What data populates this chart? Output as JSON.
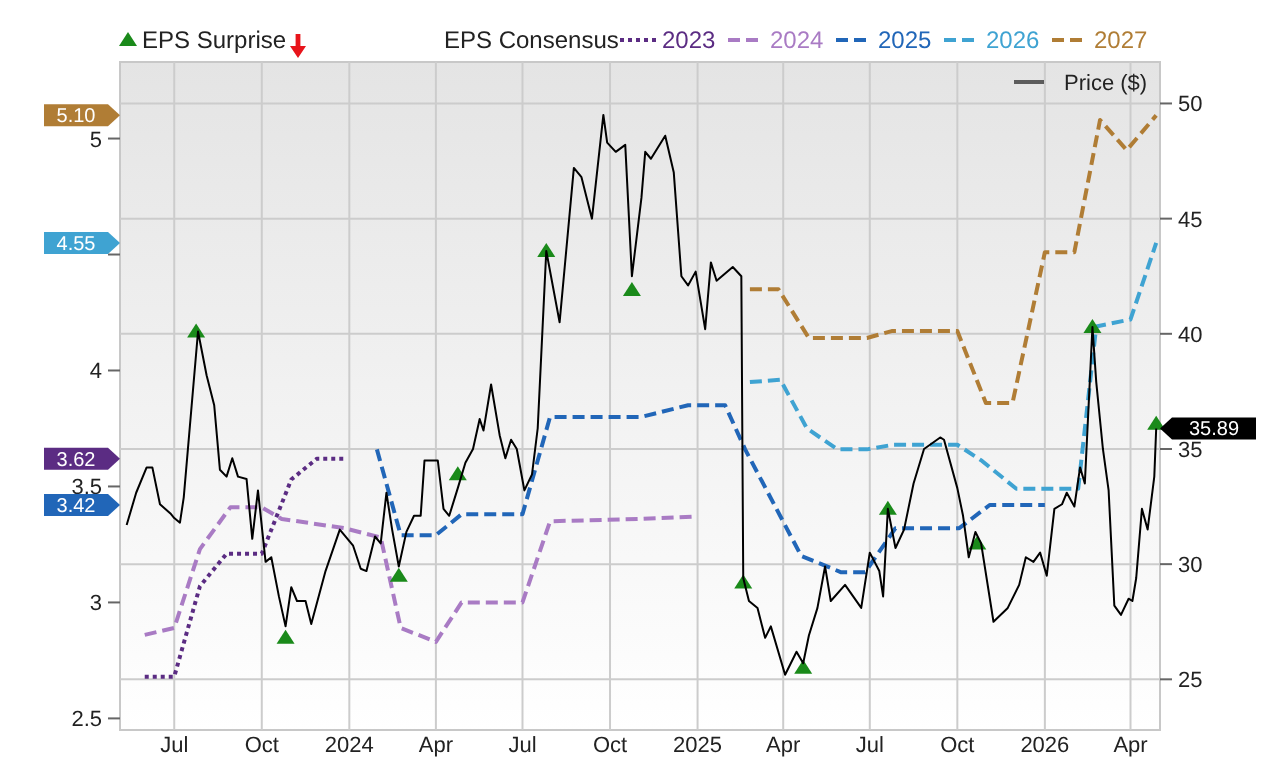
{
  "chart_data": {
    "type": "line",
    "legend_title": "EPS Consensus",
    "xlim": [
      "2023-05-05",
      "2026-05-02"
    ],
    "xticks": [
      {
        "value": "2023-07-01",
        "label": "Jul"
      },
      {
        "value": "2023-10-01",
        "label": "Oct"
      },
      {
        "value": "2024-01-01",
        "label": "2024"
      },
      {
        "value": "2024-04-01",
        "label": "Apr"
      },
      {
        "value": "2024-07-01",
        "label": "Jul"
      },
      {
        "value": "2024-10-01",
        "label": "Oct"
      },
      {
        "value": "2025-01-01",
        "label": "2025"
      },
      {
        "value": "2025-04-01",
        "label": "Apr"
      },
      {
        "value": "2025-07-01",
        "label": "Jul"
      },
      {
        "value": "2025-10-01",
        "label": "Oct"
      },
      {
        "value": "2026-01-01",
        "label": "2026"
      },
      {
        "value": "2026-04-01",
        "label": "Apr"
      }
    ],
    "ylim": [
      2.45,
      5.33
    ],
    "yticks": [
      2.5,
      3,
      {
        "value": 3.42,
        "label": "3.42"
      },
      3.5,
      {
        "value": 3.62,
        "label": "3.62"
      },
      4,
      {
        "value": 4.5,
        "label": null
      },
      {
        "value": 4.55,
        "label": "4.55"
      },
      5,
      {
        "value": 5.1,
        "label": "5.10"
      }
    ],
    "y2lim": [
      22.8,
      51.8
    ],
    "y2ticks": [
      25,
      30,
      35,
      40,
      45,
      50
    ],
    "grid": true,
    "legend": "top",
    "series": [
      {
        "name": "2023",
        "color": "#5b2c83",
        "line_style": "dotted",
        "x": [
          "2023-05-31",
          "2023-07-01",
          "2023-07-28",
          "2023-08-25",
          "2023-10-01",
          "2023-11-01",
          "2023-11-28",
          "2023-12-27"
        ],
        "values": [
          2.68,
          2.68,
          3.07,
          3.21,
          3.21,
          3.53,
          3.62,
          3.62
        ]
      },
      {
        "name": "2024",
        "color": "#a97bc4",
        "line_style": "dashed",
        "x": [
          "2023-05-31",
          "2023-07-01",
          "2023-07-28",
          "2023-08-29",
          "2023-10-01",
          "2023-10-22",
          "2023-12-27",
          "2024-02-03",
          "2024-02-24",
          "2024-04-01",
          "2024-04-28",
          "2024-07-01",
          "2024-07-30",
          "2024-11-03",
          "2024-12-30"
        ],
        "values": [
          2.86,
          2.89,
          3.23,
          3.41,
          3.41,
          3.36,
          3.32,
          3.28,
          2.89,
          2.83,
          3.0,
          3.0,
          3.35,
          3.36,
          3.37
        ]
      },
      {
        "name": "2025",
        "color": "#2166b8",
        "line_style": "dashed",
        "x": [
          "2024-01-30",
          "2024-02-24",
          "2024-04-01",
          "2024-04-28",
          "2024-07-01",
          "2024-07-30",
          "2024-11-03",
          "2024-12-22",
          "2025-01-30",
          "2025-02-20",
          "2025-04-20",
          "2025-06-01",
          "2025-06-26",
          "2025-07-28",
          "2025-08-29",
          "2025-10-03",
          "2025-11-04",
          "2026-01-01"
        ],
        "values": [
          3.66,
          3.29,
          3.29,
          3.38,
          3.38,
          3.8,
          3.8,
          3.85,
          3.85,
          3.66,
          3.2,
          3.13,
          3.13,
          3.32,
          3.32,
          3.32,
          3.42,
          3.42
        ]
      },
      {
        "name": "2026",
        "color": "#3fa3d2",
        "line_style": "dashed",
        "x": [
          "2025-02-25",
          "2025-03-29",
          "2025-04-26",
          "2025-05-28",
          "2025-06-28",
          "2025-07-26",
          "2025-10-01",
          "2025-10-27",
          "2025-12-02",
          "2026-02-05",
          "2026-02-24",
          "2026-04-01",
          "2026-04-28"
        ],
        "values": [
          3.95,
          3.96,
          3.75,
          3.66,
          3.66,
          3.68,
          3.68,
          3.61,
          3.49,
          3.49,
          4.19,
          4.22,
          4.55
        ]
      },
      {
        "name": "2027",
        "color": "#b07d35",
        "line_style": "dashed",
        "x": [
          "2025-02-25",
          "2025-03-27",
          "2025-04-28",
          "2025-06-28",
          "2025-07-24",
          "2025-10-01",
          "2025-10-31",
          "2025-11-28",
          "2026-01-01",
          "2026-02-01",
          "2026-02-28",
          "2026-03-28",
          "2026-04-28"
        ],
        "values": [
          4.35,
          4.35,
          4.14,
          4.14,
          4.17,
          4.17,
          3.86,
          3.86,
          4.51,
          4.51,
          5.08,
          4.95,
          5.1
        ]
      },
      {
        "name": "Price ($)",
        "color": "#000000",
        "line_style": "solid",
        "axis": "y2",
        "x": [
          "2023-05-12",
          "2023-05-22",
          "2023-06-02",
          "2023-06-08",
          "2023-06-16",
          "2023-06-27",
          "2023-07-01",
          "2023-07-07",
          "2023-07-11",
          "2023-07-26",
          "2023-08-04",
          "2023-08-12",
          "2023-08-18",
          "2023-08-25",
          "2023-08-31",
          "2023-09-06",
          "2023-09-15",
          "2023-09-21",
          "2023-09-27",
          "2023-10-05",
          "2023-10-11",
          "2023-10-19",
          "2023-10-26",
          "2023-11-01",
          "2023-11-07",
          "2023-11-16",
          "2023-11-22",
          "2023-12-07",
          "2023-12-22",
          "2024-01-05",
          "2024-01-13",
          "2024-01-19",
          "2024-01-28",
          "2024-02-03",
          "2024-02-09",
          "2024-02-15",
          "2024-02-22",
          "2024-03-01",
          "2024-03-09",
          "2024-03-16",
          "2024-03-20",
          "2024-04-03",
          "2024-04-09",
          "2024-04-15",
          "2024-04-24",
          "2024-05-02",
          "2024-05-10",
          "2024-05-17",
          "2024-05-21",
          "2024-05-29",
          "2024-06-07",
          "2024-06-13",
          "2024-06-19",
          "2024-06-25",
          "2024-07-03",
          "2024-07-11",
          "2024-07-17",
          "2024-07-26",
          "2024-08-09",
          "2024-08-24",
          "2024-09-01",
          "2024-09-12",
          "2024-09-24",
          "2024-09-28",
          "2024-10-07",
          "2024-10-17",
          "2024-10-24",
          "2024-11-03",
          "2024-11-07",
          "2024-11-13",
          "2024-11-28",
          "2024-12-07",
          "2024-12-15",
          "2024-12-22",
          "2024-12-30",
          "2025-01-09",
          "2025-01-15",
          "2025-01-21",
          "2025-02-07",
          "2025-02-16",
          "2025-02-18",
          "2025-02-24",
          "2025-03-05",
          "2025-03-13",
          "2025-03-19",
          "2025-04-03",
          "2025-04-15",
          "2025-04-22",
          "2025-04-28",
          "2025-05-07",
          "2025-05-15",
          "2025-05-21",
          "2025-06-05",
          "2025-06-22",
          "2025-07-01",
          "2025-07-11",
          "2025-07-15",
          "2025-07-20",
          "2025-07-28",
          "2025-08-06",
          "2025-08-16",
          "2025-08-27",
          "2025-09-13",
          "2025-09-17",
          "2025-10-01",
          "2025-10-07",
          "2025-10-13",
          "2025-10-20",
          "2025-10-26",
          "2025-11-08",
          "2025-11-23",
          "2025-12-05",
          "2025-12-12",
          "2025-12-20",
          "2025-12-27",
          "2026-01-03",
          "2026-01-11",
          "2026-01-19",
          "2026-01-24",
          "2026-02-01",
          "2026-02-07",
          "2026-02-12",
          "2026-02-20",
          "2026-02-24",
          "2026-03-03",
          "2026-03-09",
          "2026-03-15",
          "2026-03-22",
          "2026-03-30",
          "2026-04-03",
          "2026-04-07",
          "2026-04-13",
          "2026-04-19",
          "2026-04-26",
          "2026-04-28"
        ],
        "values": [
          31.7,
          33.1,
          34.2,
          34.2,
          32.6,
          32.2,
          32.0,
          31.8,
          32.9,
          40.1,
          38.2,
          36.9,
          34.1,
          33.8,
          34.6,
          33.8,
          33.7,
          31.1,
          33.2,
          30.1,
          30.3,
          28.6,
          27.3,
          29.0,
          28.4,
          28.4,
          27.4,
          29.7,
          31.5,
          30.8,
          29.8,
          29.7,
          31.2,
          30.9,
          33.1,
          31.5,
          29.9,
          31.4,
          32.1,
          32.1,
          34.5,
          34.5,
          32.4,
          32.1,
          33.3,
          34.4,
          35.0,
          36.3,
          35.8,
          37.8,
          35.6,
          34.6,
          35.4,
          35.0,
          33.2,
          33.9,
          35.9,
          43.6,
          40.5,
          47.2,
          46.8,
          45.0,
          49.5,
          48.3,
          47.9,
          48.2,
          42.5,
          45.9,
          47.9,
          47.6,
          48.6,
          47.0,
          42.5,
          42.1,
          42.7,
          40.2,
          43.1,
          42.3,
          42.9,
          42.5,
          29.4,
          28.4,
          28.1,
          26.8,
          27.3,
          25.2,
          26.2,
          25.7,
          26.9,
          28.1,
          29.9,
          28.4,
          29.1,
          28.1,
          30.5,
          29.7,
          28.6,
          32.4,
          30.7,
          31.5,
          33.5,
          35.0,
          35.5,
          35.4,
          33.3,
          32.1,
          30.3,
          31.4,
          30.9,
          27.5,
          28.1,
          29.1,
          30.3,
          30.1,
          30.5,
          29.5,
          32.4,
          32.6,
          33.1,
          32.5,
          34.2,
          33.5,
          40.3,
          37.9,
          35.0,
          33.2,
          28.2,
          27.8,
          28.5,
          28.4,
          29.4,
          32.4,
          31.5,
          33.8,
          35.89
        ],
        "value_labels": [
          null,
          null,
          null,
          null,
          null,
          null,
          null,
          null,
          null,
          null,
          null,
          null,
          null,
          null,
          null,
          null,
          null,
          null,
          null,
          null,
          null,
          null,
          null,
          null,
          null,
          null,
          null,
          null,
          null,
          null,
          null,
          null,
          null,
          null,
          null,
          null,
          null,
          null,
          null,
          null,
          null,
          null,
          null,
          null,
          null,
          null,
          null,
          null,
          null,
          null,
          null,
          null,
          null,
          null,
          null,
          null,
          null,
          null,
          null,
          null,
          null,
          null,
          null,
          null,
          null,
          null,
          null,
          null,
          null,
          null,
          null,
          null,
          null,
          null,
          null,
          null,
          null,
          null,
          null,
          null,
          null,
          null,
          null,
          null,
          null,
          null,
          null,
          null,
          null,
          null,
          null,
          null,
          null,
          null,
          null,
          null,
          null,
          null,
          null,
          null,
          null,
          null,
          null,
          null,
          null,
          null,
          null,
          null,
          null,
          null,
          null,
          null,
          null,
          null,
          null,
          null,
          null,
          null,
          null,
          null,
          null,
          null,
          null,
          null,
          null,
          null,
          null,
          null,
          null,
          null,
          null,
          null,
          null,
          null,
          "35.89"
        ]
      },
      {
        "name": "EPS Surprise",
        "type": "scatter",
        "marker": "triangle",
        "color": "#1a8a1a",
        "axis": "y2",
        "x": [
          "2023-07-24",
          "2023-10-26",
          "2024-02-22",
          "2024-04-24",
          "2024-07-26",
          "2024-10-24",
          "2025-02-18",
          "2025-04-22",
          "2025-07-20",
          "2025-10-22",
          "2026-02-20",
          "2026-04-28"
        ],
        "values": [
          40.1,
          26.8,
          29.5,
          33.9,
          43.6,
          41.9,
          29.2,
          25.5,
          32.4,
          30.9,
          40.3,
          36.1
        ]
      }
    ]
  }
}
